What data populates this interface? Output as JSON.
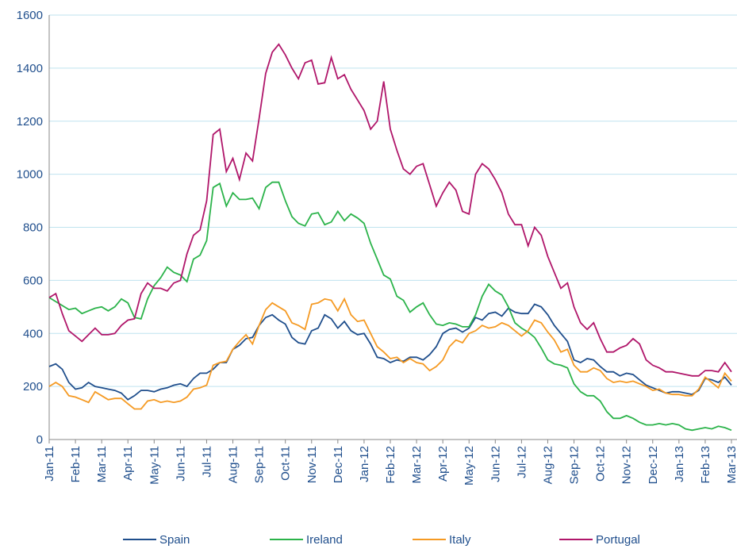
{
  "chart_data": {
    "type": "line",
    "categories": [
      "Jan-11",
      null,
      null,
      null,
      "Feb-11",
      null,
      null,
      null,
      "Mar-11",
      null,
      null,
      null,
      "Apr-11",
      null,
      null,
      null,
      "May-11",
      null,
      null,
      null,
      "Jun-11",
      null,
      null,
      null,
      "Jul-11",
      null,
      null,
      null,
      "Aug-11",
      null,
      null,
      null,
      "Sep-11",
      null,
      null,
      null,
      "Oct-11",
      null,
      null,
      null,
      "Nov-11",
      null,
      null,
      null,
      "Dec-11",
      null,
      null,
      null,
      "Jan-12",
      null,
      null,
      null,
      "Feb-12",
      null,
      null,
      null,
      "Mar-12",
      null,
      null,
      null,
      "Apr-12",
      null,
      null,
      null,
      "May-12",
      null,
      null,
      null,
      "Jun-12",
      null,
      null,
      null,
      "Jul-12",
      null,
      null,
      null,
      "Aug-12",
      null,
      null,
      null,
      "Sep-12",
      null,
      null,
      null,
      "Oct-12",
      null,
      null,
      null,
      "Nov-12",
      null,
      null,
      null,
      "Dec-12",
      null,
      null,
      null,
      "Jan-13",
      null,
      null,
      null,
      "Feb-13",
      null,
      null,
      null,
      "Mar-13"
    ],
    "series": [
      {
        "name": "Spain",
        "color": "#1f4e8c",
        "values": [
          275,
          285,
          265,
          215,
          190,
          195,
          215,
          200,
          195,
          190,
          185,
          175,
          150,
          165,
          185,
          185,
          180,
          190,
          195,
          205,
          210,
          200,
          230,
          250,
          250,
          265,
          290,
          290,
          340,
          355,
          380,
          385,
          430,
          460,
          470,
          450,
          435,
          385,
          365,
          360,
          410,
          420,
          470,
          455,
          420,
          445,
          410,
          395,
          400,
          360,
          310,
          305,
          290,
          300,
          295,
          310,
          310,
          300,
          320,
          350,
          400,
          415,
          420,
          405,
          420,
          460,
          450,
          475,
          480,
          465,
          495,
          480,
          475,
          475,
          510,
          500,
          470,
          430,
          400,
          370,
          300,
          290,
          305,
          300,
          275,
          255,
          255,
          240,
          250,
          245,
          225,
          205,
          195,
          185,
          175,
          180,
          180,
          175,
          170,
          185,
          230,
          225,
          215,
          235,
          205
        ]
      },
      {
        "name": "Ireland",
        "color": "#2bb34a",
        "values": [
          535,
          520,
          505,
          490,
          495,
          475,
          485,
          495,
          500,
          485,
          500,
          530,
          515,
          460,
          455,
          530,
          580,
          610,
          650,
          630,
          620,
          595,
          680,
          695,
          750,
          950,
          965,
          880,
          930,
          905,
          905,
          910,
          870,
          950,
          970,
          970,
          900,
          840,
          815,
          805,
          850,
          855,
          810,
          820,
          860,
          825,
          850,
          835,
          815,
          740,
          680,
          620,
          605,
          540,
          525,
          480,
          500,
          515,
          470,
          435,
          430,
          440,
          435,
          425,
          425,
          470,
          540,
          585,
          560,
          545,
          500,
          440,
          420,
          405,
          385,
          345,
          300,
          285,
          280,
          270,
          210,
          180,
          165,
          165,
          145,
          105,
          80,
          80,
          90,
          80,
          65,
          55,
          55,
          60,
          55,
          60,
          55,
          40,
          35,
          40,
          45,
          40,
          50,
          45,
          35
        ]
      },
      {
        "name": "Italy",
        "color": "#f59a23",
        "values": [
          200,
          215,
          200,
          165,
          160,
          150,
          140,
          180,
          165,
          150,
          155,
          155,
          135,
          115,
          115,
          145,
          150,
          140,
          145,
          140,
          145,
          160,
          190,
          195,
          205,
          280,
          290,
          295,
          340,
          370,
          395,
          360,
          430,
          490,
          515,
          500,
          485,
          440,
          430,
          415,
          510,
          515,
          530,
          525,
          485,
          530,
          470,
          445,
          450,
          400,
          350,
          330,
          305,
          310,
          290,
          305,
          290,
          285,
          260,
          275,
          300,
          350,
          375,
          365,
          400,
          410,
          430,
          420,
          425,
          440,
          430,
          410,
          390,
          410,
          450,
          440,
          405,
          375,
          330,
          340,
          280,
          255,
          255,
          270,
          260,
          230,
          215,
          220,
          215,
          220,
          210,
          200,
          185,
          190,
          175,
          170,
          170,
          165,
          165,
          190,
          235,
          215,
          195,
          250,
          220
        ]
      },
      {
        "name": "Portugal",
        "color": "#b0166a",
        "values": [
          535,
          550,
          475,
          410,
          390,
          370,
          395,
          420,
          395,
          395,
          400,
          430,
          450,
          455,
          550,
          590,
          570,
          570,
          560,
          590,
          600,
          700,
          770,
          790,
          900,
          1150,
          1170,
          1010,
          1060,
          980,
          1080,
          1050,
          1210,
          1380,
          1460,
          1490,
          1450,
          1400,
          1360,
          1420,
          1430,
          1340,
          1345,
          1440,
          1360,
          1375,
          1320,
          1280,
          1240,
          1170,
          1200,
          1350,
          1170,
          1090,
          1020,
          1000,
          1030,
          1040,
          960,
          880,
          930,
          970,
          940,
          860,
          850,
          1000,
          1040,
          1020,
          980,
          930,
          850,
          810,
          810,
          730,
          800,
          770,
          690,
          630,
          570,
          590,
          500,
          440,
          415,
          440,
          380,
          330,
          330,
          345,
          355,
          380,
          360,
          300,
          280,
          270,
          255,
          255,
          250,
          245,
          240,
          240,
          260,
          260,
          255,
          290,
          255
        ]
      }
    ],
    "ylim": [
      0,
      1600
    ],
    "yticks": [
      0,
      200,
      400,
      600,
      800,
      1000,
      1200,
      1400,
      1600
    ],
    "grid": true
  }
}
